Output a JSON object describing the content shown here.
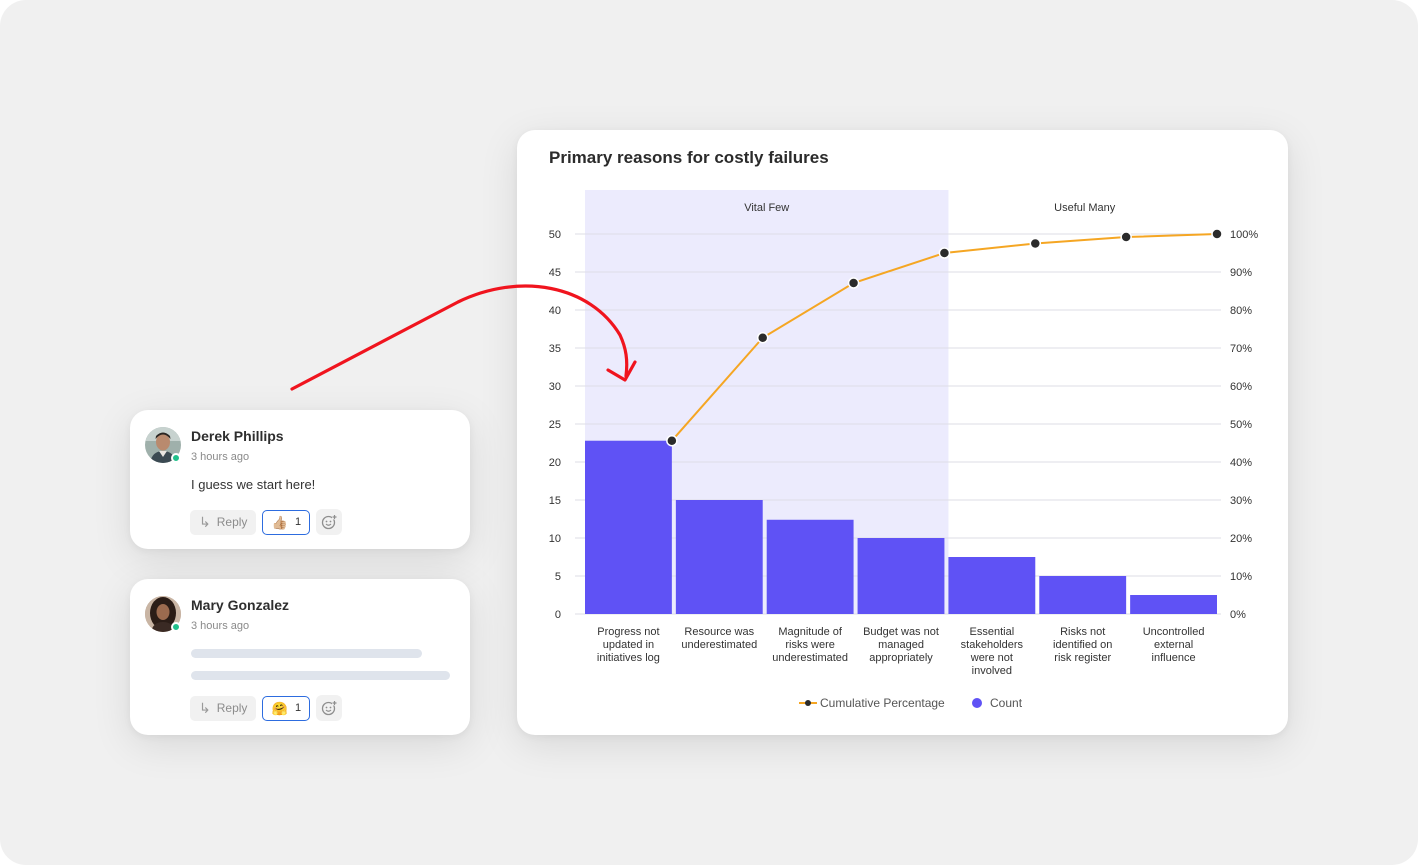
{
  "chart_data": {
    "type": "bar",
    "title": "Primary reasons for costly failures",
    "categories": [
      "Progress not updated in initiatives log",
      "Resource was underestimated",
      "Magnitude of risks were underestimated",
      "Budget was not managed appropriately",
      "Essential stakeholders were not involved",
      "Risks not identified on risk register",
      "Uncontrolled external influence"
    ],
    "category_lines": [
      [
        "Progress not",
        "updated in",
        "initiatives log"
      ],
      [
        "Resource was",
        "underestimated"
      ],
      [
        "Magnitude of",
        "risks were",
        "underestimated"
      ],
      [
        "Budget was not",
        "managed",
        "appropriately"
      ],
      [
        "Essential",
        "stakeholders",
        "were not",
        "involved"
      ],
      [
        "Risks not",
        "identified on",
        "risk register"
      ],
      [
        "Uncontrolled",
        "external",
        "influence"
      ]
    ],
    "series": [
      {
        "name": "Count",
        "type": "bar",
        "values": [
          22.8,
          15,
          12.4,
          10,
          7.5,
          5,
          2.5
        ],
        "color": "#5f52f5"
      },
      {
        "name": "Cumulative Percentage",
        "type": "line",
        "values": [
          45.6,
          72.7,
          87.1,
          95.0,
          97.5,
          99.2,
          100
        ],
        "color": "#f5a623",
        "marker_color": "#2b2b2b"
      }
    ],
    "y_left": {
      "range": [
        0,
        50
      ],
      "ticks": [
        0,
        5,
        10,
        15,
        20,
        25,
        30,
        35,
        40,
        45,
        50
      ]
    },
    "y_right": {
      "range": [
        0,
        100
      ],
      "ticks": [
        "0%",
        "10%",
        "20%",
        "30%",
        "40%",
        "50%",
        "60%",
        "70%",
        "80%",
        "90%",
        "100%"
      ]
    },
    "regions": [
      {
        "label": "Vital Few",
        "from_category": 0,
        "to_category": 3,
        "color": "#ecebfd"
      },
      {
        "label": "Useful Many",
        "from_category": 4,
        "to_category": 6
      }
    ],
    "grid": true,
    "legend_position": "bottom"
  },
  "comments": [
    {
      "author": "Derek Phillips",
      "time": "3 hours ago",
      "text": "I guess we start here!",
      "reply_label": "Reply",
      "reaction_emoji": "👍🏼",
      "reaction_count": "1",
      "online": true
    },
    {
      "author": "Mary Gonzalez",
      "time": "3 hours ago",
      "text": "",
      "reply_label": "Reply",
      "reaction_emoji": "🤗",
      "reaction_count": "1",
      "online": true
    }
  ],
  "colors": {
    "annotation_arrow": "#f0141e",
    "online_dot": "#21c08b",
    "reaction_border": "#2d6cdf"
  },
  "icons": [
    "reply-arrow-icon",
    "add-reaction-icon",
    "avatar-photo",
    "online-status-dot"
  ]
}
